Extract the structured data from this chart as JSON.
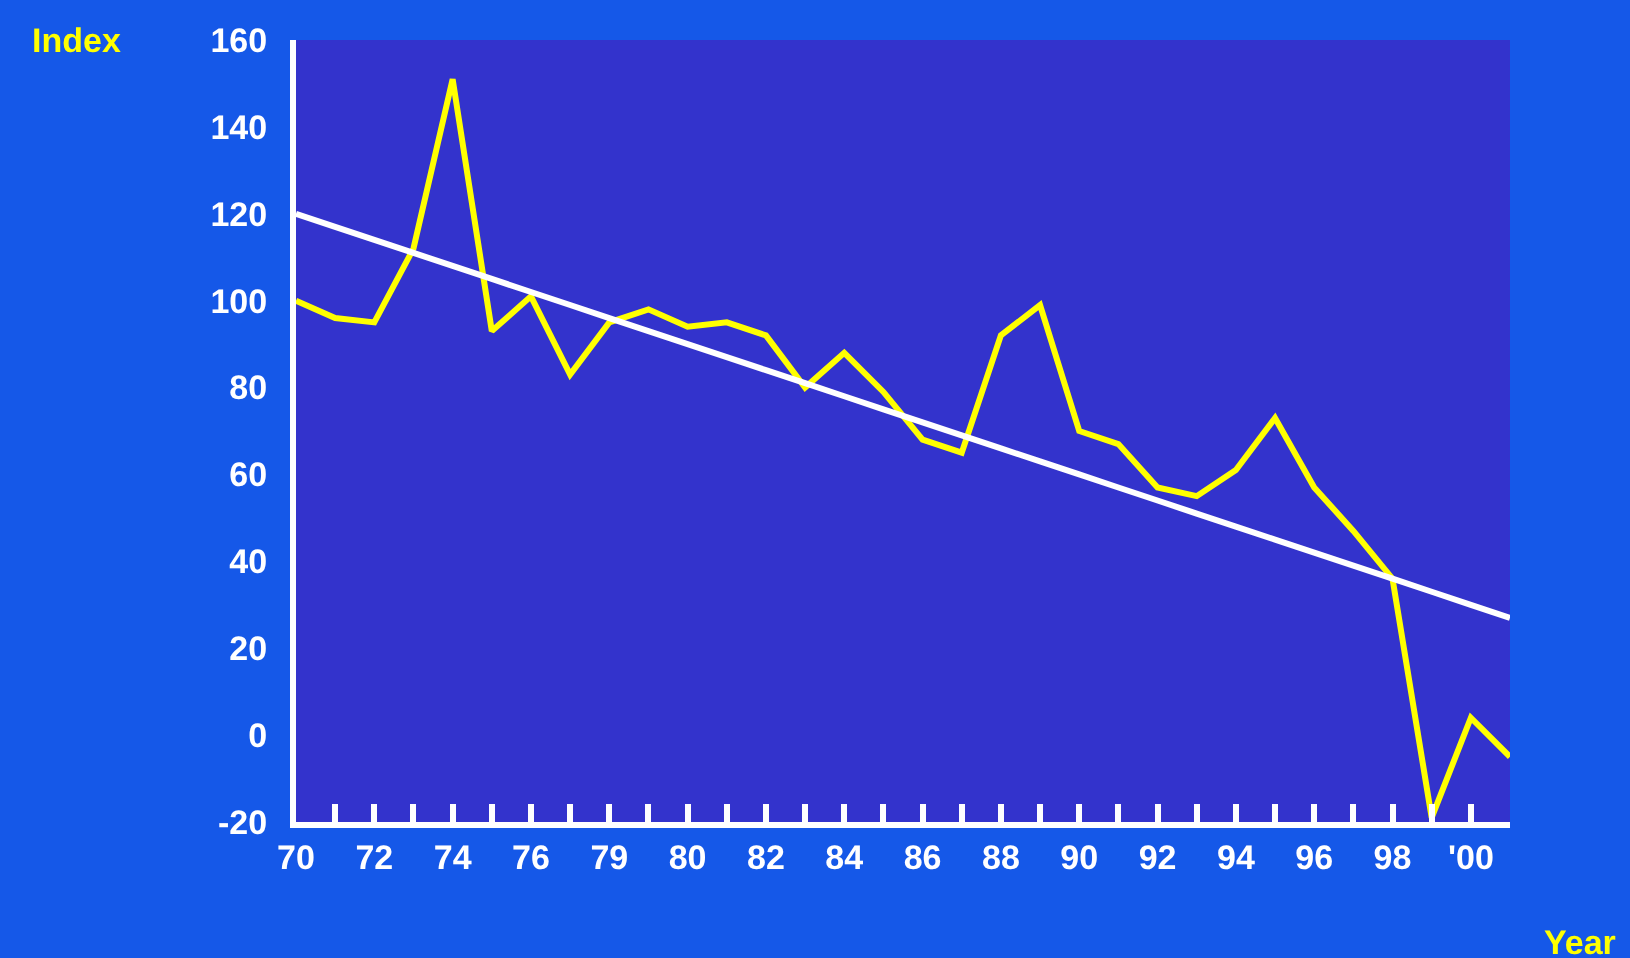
{
  "chart_data": {
    "type": "line",
    "xlabel": "Year",
    "ylabel": "Index",
    "categories": [
      "70",
      null,
      "72",
      null,
      "74",
      null,
      "76",
      null,
      "79",
      null,
      "80",
      null,
      "82",
      null,
      "84",
      null,
      "86",
      null,
      "88",
      null,
      "90",
      null,
      "92",
      null,
      "94",
      null,
      "96",
      null,
      "98",
      null,
      "'00",
      null
    ],
    "series": [
      {
        "color": "#ffff00",
        "values": [
          100,
          96,
          95,
          112,
          151,
          93,
          101,
          83,
          95,
          98,
          94,
          95,
          92,
          80,
          88,
          79,
          68,
          65,
          92,
          99,
          70,
          67,
          57,
          55,
          61,
          73,
          57,
          47,
          36,
          -19,
          4,
          -5
        ]
      },
      {
        "color": "#ffffff",
        "values": [
          120,
          117,
          114,
          111,
          108,
          105,
          102,
          99,
          96,
          93,
          90,
          87,
          84,
          81,
          78,
          75,
          72,
          69,
          66,
          63,
          60,
          57,
          54,
          51,
          48,
          45,
          42,
          39,
          36,
          33,
          30,
          27
        ]
      }
    ],
    "ylim": [
      -20,
      160
    ],
    "yticks": [
      -20,
      0,
      20,
      40,
      60,
      80,
      100,
      120,
      140,
      160
    ],
    "grid": false,
    "marker": "none",
    "line_style": "solid"
  }
}
